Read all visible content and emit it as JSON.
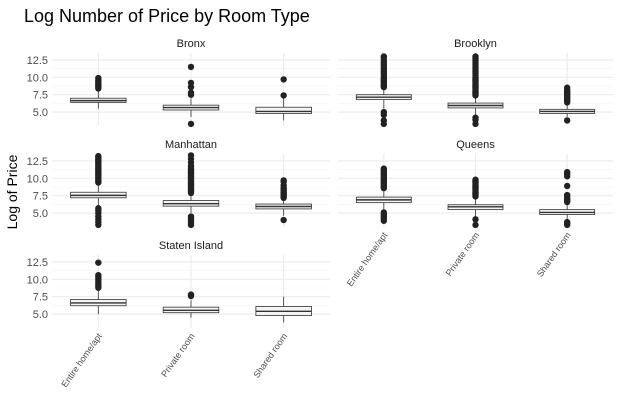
{
  "chart_data": {
    "type": "boxplot",
    "title": "Log Number of Price by Room Type",
    "xlabel": "",
    "ylabel": "Log of Price",
    "categories": [
      "Entire home/apt",
      "Private room",
      "Shared room"
    ],
    "y_ticks": [
      5.0,
      7.5,
      10.0,
      12.5
    ],
    "y_tick_labels": [
      "5.0",
      "7.5",
      "10.0",
      "12.5"
    ],
    "ylim": [
      3.0,
      13.5
    ],
    "grid": true,
    "legend": "none",
    "panels": [
      {
        "name": "Bronx",
        "boxes": [
          {
            "category": "Entire home/apt",
            "lower_whisker": 5.5,
            "q1": 6.4,
            "median": 6.65,
            "q3": 7.0,
            "upper_whisker": 8.2,
            "outliers": [
              8.4,
              8.6,
              8.8,
              9.0,
              9.2,
              9.4,
              9.6,
              9.9
            ]
          },
          {
            "category": "Private room",
            "lower_whisker": 4.3,
            "q1": 5.3,
            "median": 5.65,
            "q3": 6.0,
            "upper_whisker": 7.0,
            "outliers": [
              3.3,
              7.5,
              7.8,
              8.6,
              9.2,
              11.5
            ]
          },
          {
            "category": "Shared room",
            "lower_whisker": 3.8,
            "q1": 4.8,
            "median": 5.1,
            "q3": 5.7,
            "upper_whisker": 7.0,
            "outliers": [
              7.4,
              9.7
            ]
          }
        ]
      },
      {
        "name": "Brooklyn",
        "boxes": [
          {
            "category": "Entire home/apt",
            "lower_whisker": 5.5,
            "q1": 6.8,
            "median": 7.15,
            "q3": 7.5,
            "upper_whisker": 8.4,
            "outliers": [
              3.3,
              3.8,
              4.6,
              5.0,
              8.6,
              8.8,
              9.0,
              9.2,
              9.4,
              9.6,
              9.8,
              10.0,
              10.3,
              10.6,
              10.9,
              11.2,
              11.5,
              11.8,
              12.1,
              12.4,
              12.8,
              13.0
            ]
          },
          {
            "category": "Private room",
            "lower_whisker": 4.3,
            "q1": 5.6,
            "median": 5.95,
            "q3": 6.3,
            "upper_whisker": 7.3,
            "outliers": [
              3.3,
              3.9,
              4.2,
              7.4,
              7.6,
              7.8,
              8.0,
              8.2,
              8.4,
              8.6,
              8.8,
              9.0,
              9.2,
              9.4,
              9.6,
              9.8,
              10.0,
              10.3,
              10.6,
              10.9,
              11.2,
              11.5,
              11.8,
              12.1,
              12.4,
              12.7,
              13.0
            ]
          },
          {
            "category": "Shared room",
            "lower_whisker": 4.3,
            "q1": 4.8,
            "median": 5.1,
            "q3": 5.4,
            "upper_whisker": 6.2,
            "outliers": [
              3.8,
              6.4,
              6.6,
              6.8,
              7.0,
              7.2,
              7.4,
              7.6,
              7.8,
              8.0,
              8.2,
              8.5
            ]
          }
        ]
      },
      {
        "name": "Manhattan",
        "boxes": [
          {
            "category": "Entire home/apt",
            "lower_whisker": 6.0,
            "q1": 7.2,
            "median": 7.55,
            "q3": 8.0,
            "upper_whisker": 9.2,
            "outliers": [
              3.3,
              3.7,
              4.1,
              4.5,
              5.0,
              5.4,
              5.7,
              9.4,
              9.6,
              9.8,
              10.0,
              10.2,
              10.4,
              10.6,
              10.8,
              11.0,
              11.2,
              11.4,
              11.6,
              11.8,
              12.0,
              12.2,
              12.4,
              12.6,
              12.8,
              13.0,
              13.2
            ]
          },
          {
            "category": "Private room",
            "lower_whisker": 5.0,
            "q1": 6.0,
            "median": 6.35,
            "q3": 6.8,
            "upper_whisker": 7.7,
            "outliers": [
              3.3,
              3.6,
              3.9,
              4.2,
              4.5,
              7.9,
              8.1,
              8.3,
              8.5,
              8.7,
              8.9,
              9.1,
              9.3,
              9.5,
              9.7,
              9.9,
              10.1,
              10.3,
              10.5,
              10.7,
              10.9,
              11.1,
              11.3,
              11.5,
              11.8,
              12.3,
              12.8,
              13.3
            ]
          },
          {
            "category": "Shared room",
            "lower_whisker": 4.6,
            "q1": 5.6,
            "median": 5.95,
            "q3": 6.3,
            "upper_whisker": 7.0,
            "outliers": [
              4.0,
              7.2,
              7.4,
              7.6,
              7.8,
              8.0,
              8.2,
              8.4,
              8.6,
              9.0,
              9.5,
              9.7
            ]
          }
        ]
      },
      {
        "name": "Queens",
        "boxes": [
          {
            "category": "Entire home/apt",
            "lower_whisker": 5.3,
            "q1": 6.5,
            "median": 6.9,
            "q3": 7.3,
            "upper_whisker": 8.4,
            "outliers": [
              3.9,
              4.2,
              4.5,
              4.8,
              5.1,
              8.6,
              8.8,
              9.0,
              9.2,
              9.4,
              9.6,
              9.8,
              10.0,
              10.2,
              10.4,
              10.6,
              10.8,
              11.0,
              11.2,
              11.4
            ]
          },
          {
            "category": "Private room",
            "lower_whisker": 4.5,
            "q1": 5.5,
            "median": 5.9,
            "q3": 6.2,
            "upper_whisker": 7.2,
            "outliers": [
              3.3,
              4.1,
              7.4,
              7.6,
              7.8,
              8.0,
              8.2,
              8.4,
              8.6,
              8.8,
              9.0,
              9.2,
              9.4,
              9.6,
              9.8
            ]
          },
          {
            "category": "Shared room",
            "lower_whisker": 3.9,
            "q1": 4.8,
            "median": 5.1,
            "q3": 5.5,
            "upper_whisker": 6.4,
            "outliers": [
              3.3,
              3.5,
              3.7,
              6.6,
              6.8,
              7.0,
              7.3,
              7.6,
              8.9,
              10.3,
              10.6,
              10.9
            ]
          }
        ]
      },
      {
        "name": "Staten Island",
        "boxes": [
          {
            "category": "Entire home/apt",
            "lower_whisker": 5.0,
            "q1": 6.2,
            "median": 6.6,
            "q3": 7.1,
            "upper_whisker": 8.5,
            "outliers": [
              8.8,
              9.1,
              9.4,
              9.7,
              10.0,
              10.3,
              10.6,
              12.4
            ]
          },
          {
            "category": "Private room",
            "lower_whisker": 4.5,
            "q1": 5.2,
            "median": 5.55,
            "q3": 6.0,
            "upper_whisker": 7.0,
            "outliers": [
              7.6,
              7.8
            ]
          },
          {
            "category": "Shared room",
            "lower_whisker": 3.8,
            "q1": 4.8,
            "median": 5.4,
            "q3": 6.1,
            "upper_whisker": 7.5,
            "outliers": []
          }
        ]
      }
    ],
    "colors": {
      "box_fill": "#f4f4f4",
      "box_stroke": "#333333",
      "point": "#222222",
      "grid_major": "#ebebeb",
      "grid_minor": "#f4f4f4",
      "strip_text": "#1a1a1a",
      "axis_text": "#4d4d4d",
      "title": "#000000"
    }
  }
}
